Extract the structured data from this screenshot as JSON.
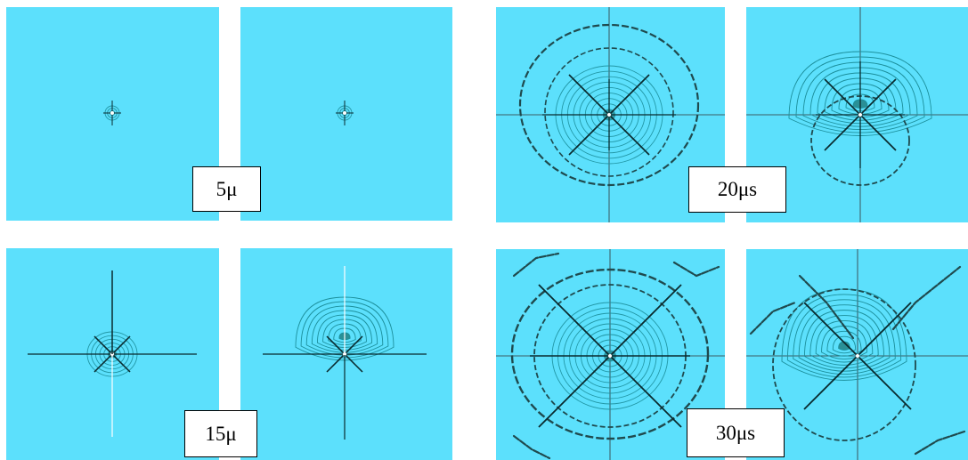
{
  "labels": {
    "t5": "5μ",
    "t20": "20μs",
    "t15": "15μ",
    "t30": "30μs"
  },
  "colors": {
    "background": "#5ce0fc",
    "fringe": "#1c8f9c",
    "line": "#0a2a2e"
  }
}
